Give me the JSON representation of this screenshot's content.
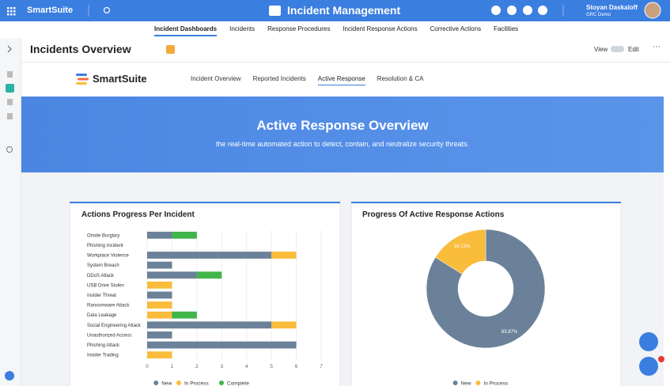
{
  "app": {
    "brand": "SmartSuite",
    "title": "Incident Management",
    "user": {
      "name": "Stoyan Daskaloff",
      "org": "GRC Demo"
    }
  },
  "nav": {
    "items": [
      "Incident Dashboards",
      "Incidents",
      "Response Procedures",
      "Incident Response Actions",
      "Corrective Actions",
      "Facilities"
    ],
    "active": 0
  },
  "page": {
    "title": "Incidents Overview",
    "view": "View",
    "edit": "Edit"
  },
  "dashboard": {
    "brand": "SmartSuite",
    "tabs": [
      "Incident Overview",
      "Reported Incidents",
      "Active Response",
      "Resolution & CA"
    ],
    "active_tab": 2,
    "banner": {
      "title": "Active Response Overview",
      "subtitle": "the real-time automated action to detect, contain, and neutralize security threats."
    }
  },
  "chart_data": [
    {
      "type": "bar",
      "orientation": "horizontal",
      "stacked": true,
      "title": "Actions Progress Per Incident",
      "categories": [
        "Onsite Burglary",
        "Phishing Incident",
        "Workplace Violence",
        "System Breach",
        "DDoS Attack",
        "USB Drive Stolen",
        "Insider Threat",
        "Ransomware Attack",
        "Data Leakage",
        "Social Engineering Attack",
        "Unauthorized Access",
        "Phishing Attack",
        "Insider Trading"
      ],
      "series": [
        {
          "name": "New",
          "color": "#6b8199",
          "values": [
            1,
            0,
            5,
            1,
            2,
            0,
            1,
            0,
            0,
            5,
            1,
            6,
            0
          ]
        },
        {
          "name": "In Process",
          "color": "#f9bc3b",
          "values": [
            0,
            0,
            1,
            0,
            0,
            1,
            0,
            1,
            1,
            1,
            0,
            0,
            1
          ]
        },
        {
          "name": "Complete",
          "color": "#3fb54a",
          "values": [
            1,
            0,
            0,
            0,
            1,
            0,
            0,
            0,
            1,
            0,
            0,
            0,
            0
          ]
        }
      ],
      "xlim": [
        0,
        7
      ],
      "xticks": [
        0,
        1,
        2,
        3,
        4,
        5,
        6,
        7
      ],
      "legend": "bottom"
    },
    {
      "type": "pie",
      "donut": true,
      "title": "Progress Of Active Response Actions",
      "categories": [
        "New",
        "In Process"
      ],
      "values": [
        83.87,
        16.13
      ],
      "value_labels": [
        "83.87%",
        "16.13%"
      ],
      "colors": [
        "#6b8199",
        "#f9bc3b"
      ],
      "legend": "bottom"
    }
  ]
}
